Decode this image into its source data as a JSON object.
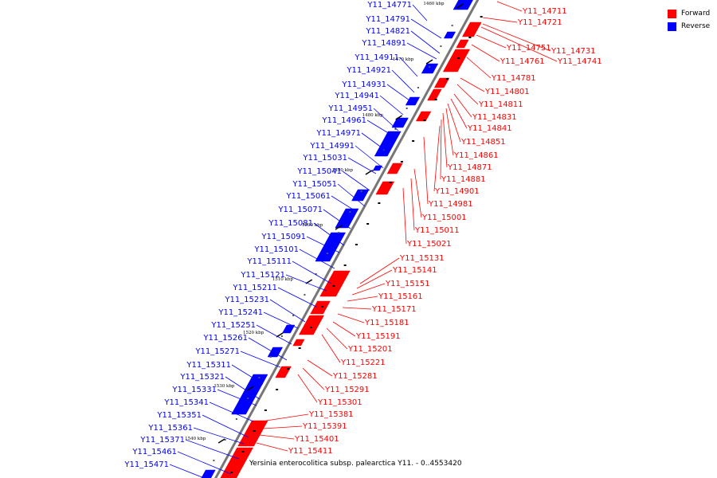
{
  "legend": {
    "forward_label": "Forward",
    "reverse_label": "Reverse",
    "forward_color": "#ff0000",
    "reverse_color": "#0000ff"
  },
  "genome_caption": "Yersinia enterocolitica subsp. palearctica Y11. - 0..4553420",
  "ticks": [
    "1460 kbp",
    "1470 kbp",
    "1480 kbp",
    "1490 kbp",
    "1500 kbp",
    "1510 kbp",
    "1520 kbp",
    "1530 kbp",
    "1540 kbp"
  ],
  "reverse_genes": [
    "Y11_14771",
    "Y11_14791",
    "Y11_14821",
    "Y11_14891",
    "Y11_14911",
    "Y11_14921",
    "Y11_14931",
    "Y11_14941",
    "Y11_14951",
    "Y11_14961",
    "Y11_14971",
    "Y11_14991",
    "Y11_15031",
    "Y11_15041",
    "Y11_15051",
    "Y11_15061",
    "Y11_15071",
    "Y11_15081",
    "Y11_15091",
    "Y11_15101",
    "Y11_15111",
    "Y11_15121",
    "Y11_15211",
    "Y11_15231",
    "Y11_15241",
    "Y11_15251",
    "Y11_15261",
    "Y11_15271",
    "Y11_15311",
    "Y11_15321",
    "Y11_15331",
    "Y11_15341",
    "Y11_15351",
    "Y11_15361",
    "Y11_15371",
    "Y11_15461",
    "Y11_15471"
  ],
  "forward_genes": [
    "Y11_14711",
    "Y11_14721",
    "Y11_14731",
    "Y11_14741",
    "Y11_14751",
    "Y11_14761",
    "Y11_14781",
    "Y11_14801",
    "Y11_14811",
    "Y11_14831",
    "Y11_14841",
    "Y11_14851",
    "Y11_14861",
    "Y11_14871",
    "Y11_14881",
    "Y11_14901",
    "Y11_14981",
    "Y11_15001",
    "Y11_15011",
    "Y11_15021",
    "Y11_15131",
    "Y11_15141",
    "Y11_15151",
    "Y11_15161",
    "Y11_15171",
    "Y11_15181",
    "Y11_15191",
    "Y11_15201",
    "Y11_15221",
    "Y11_15281",
    "Y11_15291",
    "Y11_15301",
    "Y11_15381",
    "Y11_15391",
    "Y11_15401",
    "Y11_15411"
  ]
}
